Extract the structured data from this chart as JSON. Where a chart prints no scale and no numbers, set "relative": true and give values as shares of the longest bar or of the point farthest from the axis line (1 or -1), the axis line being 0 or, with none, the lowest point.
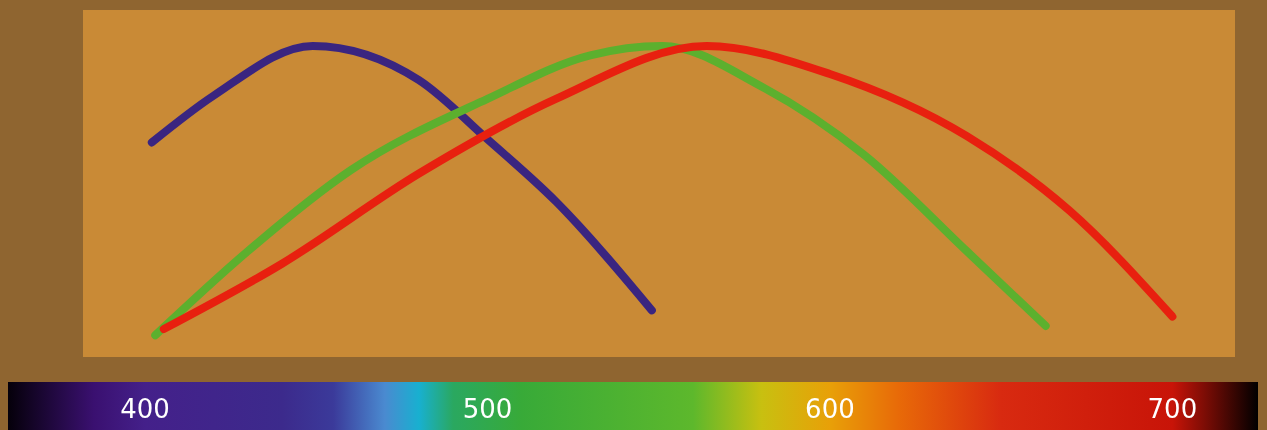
{
  "chart_data": {
    "type": "line",
    "relative": true,
    "xlim": [
      360,
      725
    ],
    "xticks": [
      400,
      500,
      600,
      700
    ],
    "grid": false,
    "legend": false,
    "marker": "none",
    "line_style": "solid",
    "series": [
      {
        "color": "#3a2580",
        "x": [
          402,
          420,
          449,
          480,
          500,
          520,
          548
        ],
        "values": [
          0.69,
          0.84,
          1.0,
          0.89,
          0.7,
          0.5,
          0.15
        ]
      },
      {
        "color": "#5cb02e",
        "x": [
          403,
          430,
          460,
          500,
          530,
          551,
          580,
          610,
          640,
          663
        ],
        "values": [
          0.07,
          0.34,
          0.6,
          0.83,
          0.97,
          1.0,
          0.87,
          0.65,
          0.34,
          0.1
        ]
      },
      {
        "color": "#e8200f",
        "x": [
          405.5,
          440,
          480,
          520,
          564,
          600,
          640,
          670,
          700
        ],
        "values": [
          0.09,
          0.3,
          0.59,
          0.83,
          1.0,
          0.91,
          0.71,
          0.47,
          0.13
        ]
      }
    ]
  }
}
